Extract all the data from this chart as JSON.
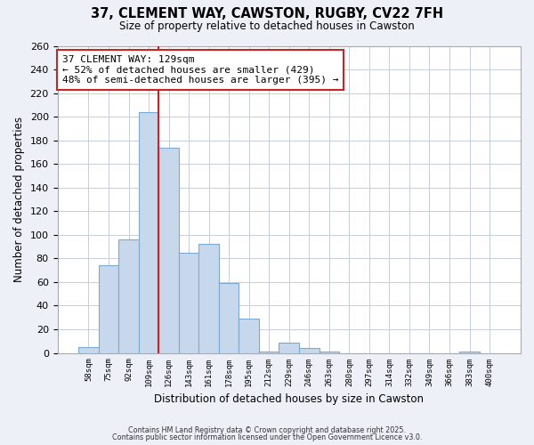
{
  "title1": "37, CLEMENT WAY, CAWSTON, RUGBY, CV22 7FH",
  "title2": "Size of property relative to detached houses in Cawston",
  "xlabel": "Distribution of detached houses by size in Cawston",
  "ylabel": "Number of detached properties",
  "bar_labels": [
    "58sqm",
    "75sqm",
    "92sqm",
    "109sqm",
    "126sqm",
    "143sqm",
    "161sqm",
    "178sqm",
    "195sqm",
    "212sqm",
    "229sqm",
    "246sqm",
    "263sqm",
    "280sqm",
    "297sqm",
    "314sqm",
    "332sqm",
    "349sqm",
    "366sqm",
    "383sqm",
    "400sqm"
  ],
  "bar_values": [
    5,
    74,
    96,
    204,
    174,
    85,
    92,
    59,
    29,
    1,
    9,
    4,
    1,
    0,
    0,
    0,
    0,
    0,
    0,
    1,
    0
  ],
  "bar_color": "#c8d8ec",
  "bar_edge_color": "#7aaad0",
  "vline_color": "#cc2222",
  "annotation_box_text": "37 CLEMENT WAY: 129sqm\n← 52% of detached houses are smaller (429)\n48% of semi-detached houses are larger (395) →",
  "ylim": [
    0,
    260
  ],
  "yticks": [
    0,
    20,
    40,
    60,
    80,
    100,
    120,
    140,
    160,
    180,
    200,
    220,
    240,
    260
  ],
  "footnote1": "Contains HM Land Registry data © Crown copyright and database right 2025.",
  "footnote2": "Contains public sector information licensed under the Open Government Licence v3.0.",
  "bg_color": "#eef0f8",
  "plot_bg_color": "#ffffff",
  "grid_color": "#c8cce0"
}
